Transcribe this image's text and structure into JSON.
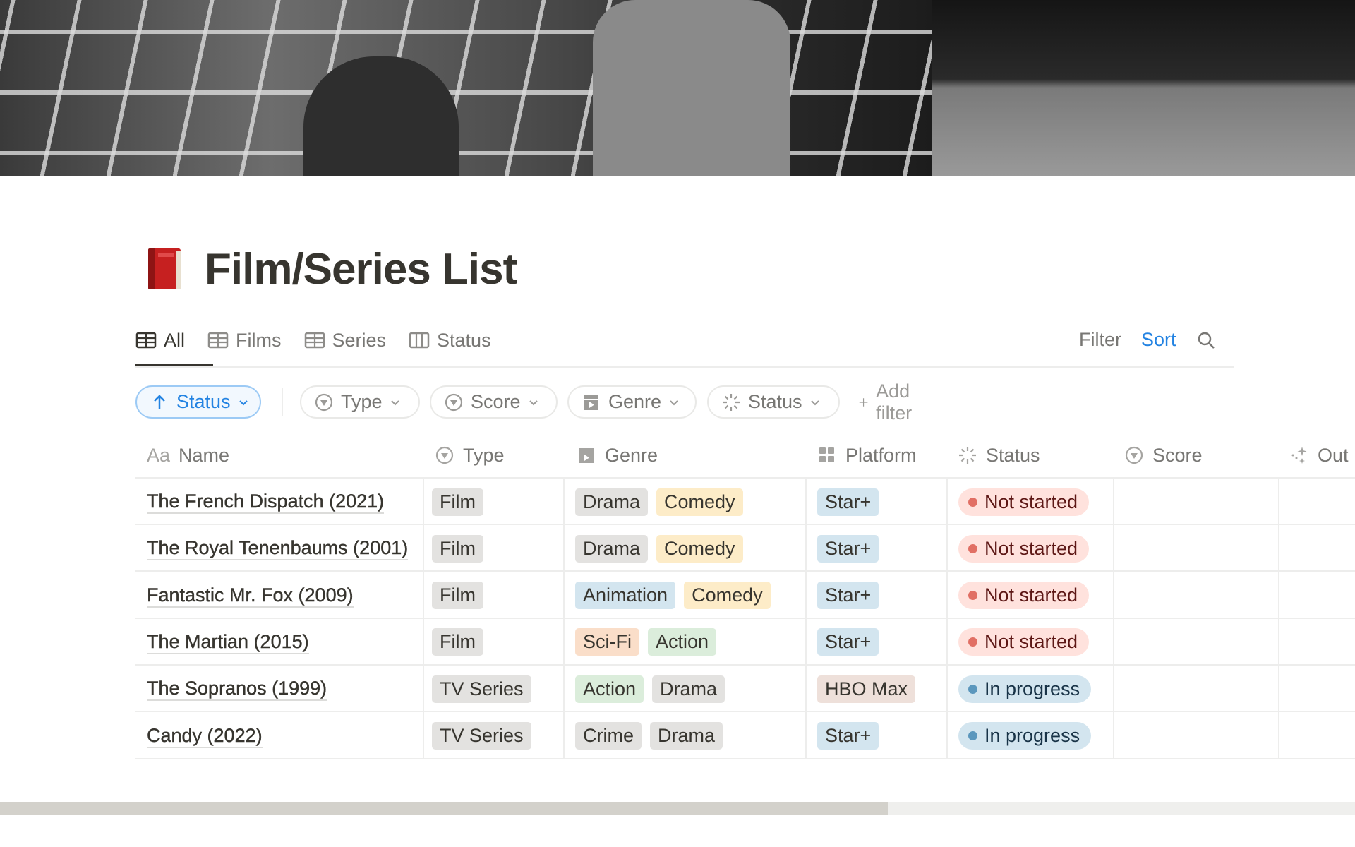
{
  "page": {
    "title": "Film/Series List",
    "icon": "red-book-icon"
  },
  "tabs": [
    {
      "label": "All",
      "icon": "table-icon",
      "active": true
    },
    {
      "label": "Films",
      "icon": "table-icon"
    },
    {
      "label": "Series",
      "icon": "table-icon"
    },
    {
      "label": "Status",
      "icon": "board-icon"
    }
  ],
  "actions": {
    "filter": "Filter",
    "sort": "Sort",
    "search_icon": "search-icon"
  },
  "chips": {
    "sort": {
      "label": "Status",
      "icon": "arrow-up-icon"
    },
    "filters": [
      {
        "label": "Type",
        "icon": "select-icon"
      },
      {
        "label": "Score",
        "icon": "select-icon"
      },
      {
        "label": "Genre",
        "icon": "clapper-icon"
      },
      {
        "label": "Status",
        "icon": "status-icon"
      }
    ],
    "add_filter": "Add filter"
  },
  "columns": [
    {
      "label": "Name",
      "icon_text": "Aa"
    },
    {
      "label": "Type",
      "icon": "select-icon"
    },
    {
      "label": "Genre",
      "icon": "clapper-icon"
    },
    {
      "label": "Platform",
      "icon": "grid-icon"
    },
    {
      "label": "Status",
      "icon": "status-icon"
    },
    {
      "label": "Score",
      "icon": "select-icon"
    },
    {
      "label": "Out",
      "icon": "sparkle-icon"
    }
  ],
  "colors": {
    "gray": "#e3e2e0",
    "yellow": "#fdecc8",
    "blue": "#d3e5ef",
    "orange": "#fadec9",
    "green": "#dbeddb",
    "brown": "#eee0da",
    "not_started_bg": "#ffe2dd",
    "not_started_dot": "#e16f64",
    "not_started_text": "#5d1715",
    "in_progress_bg": "#d3e5ef",
    "in_progress_dot": "#5b97bd",
    "in_progress_text": "#183347",
    "accent": "#2383e2"
  },
  "rows": [
    {
      "name": "The French Dispatch (2021)",
      "type": "Film",
      "genres": [
        [
          "Drama",
          "gray"
        ],
        [
          "Comedy",
          "yellow"
        ]
      ],
      "platform": [
        "Star+",
        "blue"
      ],
      "status": "Not started"
    },
    {
      "name": "The Royal Tenenbaums (2001)",
      "type": "Film",
      "genres": [
        [
          "Drama",
          "gray"
        ],
        [
          "Comedy",
          "yellow"
        ]
      ],
      "platform": [
        "Star+",
        "blue"
      ],
      "status": "Not started"
    },
    {
      "name": "Fantastic Mr. Fox (2009)",
      "type": "Film",
      "genres": [
        [
          "Animation",
          "blue"
        ],
        [
          "Comedy",
          "yellow"
        ]
      ],
      "platform": [
        "Star+",
        "blue"
      ],
      "status": "Not started"
    },
    {
      "name": "The Martian (2015)",
      "type": "Film",
      "genres": [
        [
          "Sci-Fi",
          "orange"
        ],
        [
          "Action",
          "green"
        ]
      ],
      "platform": [
        "Star+",
        "blue"
      ],
      "status": "Not started"
    },
    {
      "name": "The Sopranos (1999)",
      "type": "TV Series",
      "genres": [
        [
          "Action",
          "green"
        ],
        [
          "Drama",
          "gray"
        ]
      ],
      "platform": [
        "HBO Max",
        "brown"
      ],
      "status": "In progress"
    },
    {
      "name": "Candy (2022)",
      "type": "TV Series",
      "genres": [
        [
          "Crime",
          "gray"
        ],
        [
          "Drama",
          "gray"
        ]
      ],
      "platform": [
        "Star+",
        "blue"
      ],
      "status": "In progress"
    }
  ]
}
